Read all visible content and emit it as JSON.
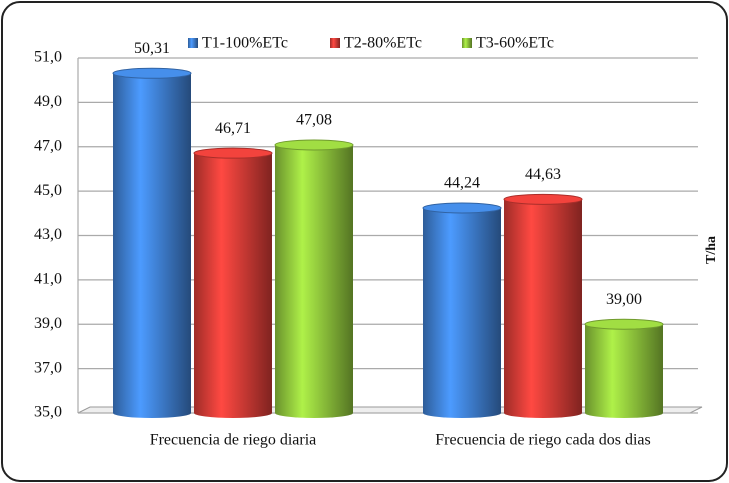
{
  "chart_data": {
    "type": "bar",
    "categories": [
      "Frecuencia de riego diaria",
      "Frecuencia de riego cada dos dias"
    ],
    "series": [
      {
        "name": "T1-100%ETc",
        "color": "#3d7ccc",
        "values": [
          50.31,
          44.24
        ],
        "value_labels": [
          "50,31",
          "44,24"
        ]
      },
      {
        "name": "T2-80%ETc",
        "color": "#d33a35",
        "values": [
          46.71,
          44.63
        ],
        "value_labels": [
          "46,71",
          "44,63"
        ]
      },
      {
        "name": "T3-60%ETc",
        "color": "#8cc13a",
        "values": [
          47.08,
          39.0
        ],
        "value_labels": [
          "47,08",
          "39,00"
        ]
      }
    ],
    "y_label": "T/ha",
    "ylim": [
      35,
      51
    ],
    "yticks": [
      {
        "value": 35,
        "label": "35,0"
      },
      {
        "value": 37,
        "label": "37,0"
      },
      {
        "value": 39,
        "label": "39,0"
      },
      {
        "value": 41,
        "label": "41,0"
      },
      {
        "value": 43,
        "label": "43,0"
      },
      {
        "value": 45,
        "label": "45,0"
      },
      {
        "value": 47,
        "label": "47,0"
      },
      {
        "value": 49,
        "label": "49,0"
      },
      {
        "value": 51,
        "label": "51,0"
      }
    ],
    "grid": true
  }
}
